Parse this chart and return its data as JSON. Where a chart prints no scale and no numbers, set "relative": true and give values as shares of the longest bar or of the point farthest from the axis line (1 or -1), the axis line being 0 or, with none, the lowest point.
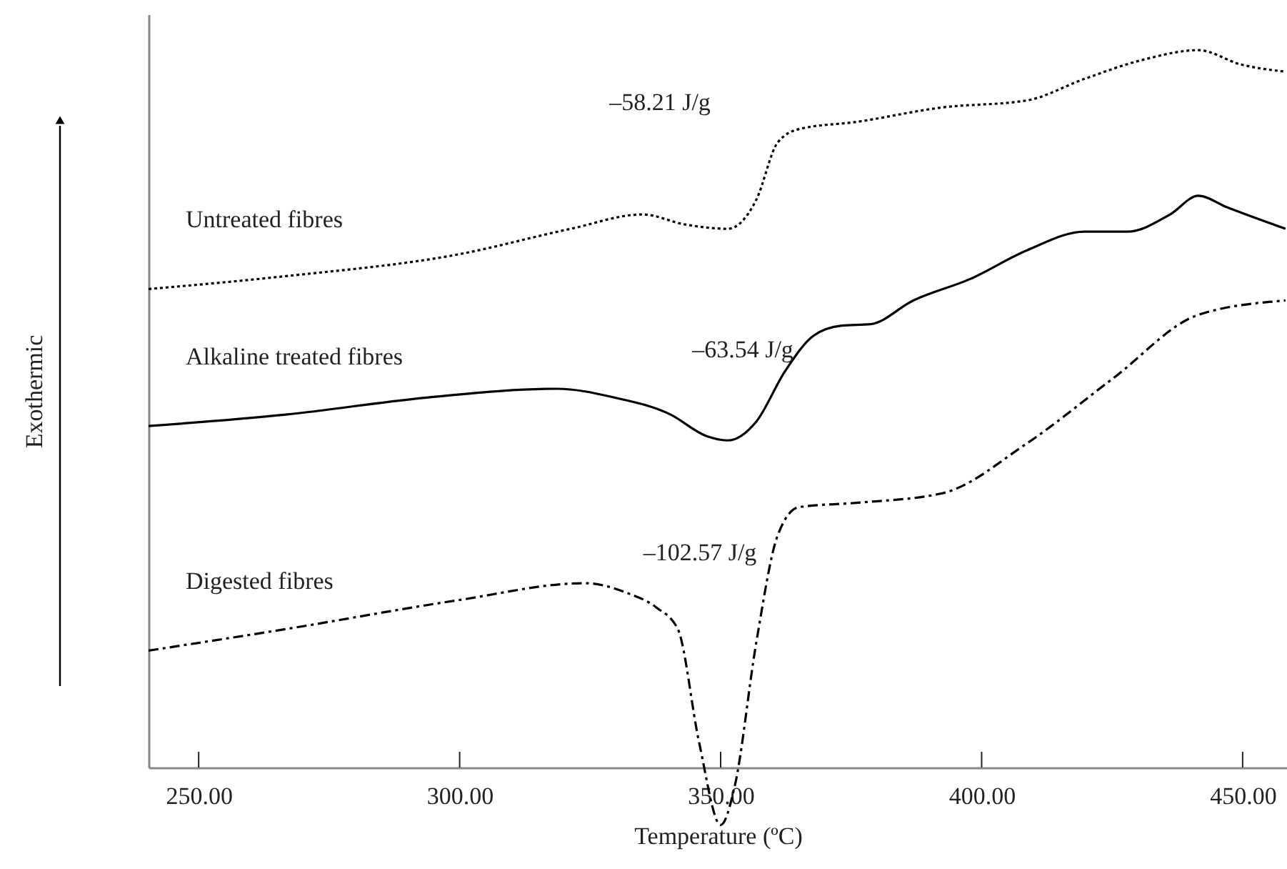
{
  "chart_data": {
    "type": "line",
    "relative": true,
    "xlabel": "Temperature (ºC)",
    "ylabel": "Exothermic",
    "xlim": [
      240.4,
      458.5
    ],
    "xticks": [
      {
        "value": 250,
        "label": "250.00"
      },
      {
        "value": 300,
        "label": "300.00"
      },
      {
        "value": 350,
        "label": "350.00"
      },
      {
        "value": 400,
        "label": "400.00"
      },
      {
        "value": 450,
        "label": "450.00"
      }
    ],
    "grid": false,
    "series": [
      {
        "name": "Untreated fibres",
        "color": "#000000",
        "line_style": "dotted",
        "x": [
          240.4,
          266.7,
          299.5,
          321.3,
          335.0,
          343.2,
          351.4,
          356.8,
          360.9,
          365.0,
          376.0,
          392.3,
          408.7,
          419.7,
          430.6,
          441.5,
          449.7,
          458.2
        ],
        "values": [
          0.667,
          0.685,
          0.715,
          0.751,
          0.771,
          0.757,
          0.751,
          0.791,
          0.871,
          0.89,
          0.9,
          0.92,
          0.93,
          0.96,
          0.986,
          1.0,
          0.98,
          0.97
        ]
      },
      {
        "name": "Alkaline treated fibres",
        "color": "#000000",
        "line_style": "solid",
        "x": [
          240.4,
          266.7,
          294.0,
          318.6,
          329.5,
          340.4,
          347.3,
          351.4,
          356.8,
          362.3,
          367.8,
          373.2,
          378.7,
          386.9,
          397.8,
          408.7,
          419.7,
          427.9,
          436.1,
          441.5,
          447.0,
          458.2
        ],
        "values": [
          0.476,
          0.492,
          0.516,
          0.528,
          0.516,
          0.492,
          0.462,
          0.456,
          0.482,
          0.552,
          0.602,
          0.616,
          0.618,
          0.651,
          0.681,
          0.721,
          0.747,
          0.747,
          0.771,
          0.797,
          0.781,
          0.751
        ]
      },
      {
        "name": "Digested fibres",
        "color": "#000000",
        "line_style": "dashed",
        "x": [
          240.4,
          266.7,
          299.5,
          324.0,
          332.2,
          337.7,
          341.8,
          345.9,
          350.0,
          352.7,
          356.8,
          360.9,
          365.0,
          376.0,
          392.3,
          408.7,
          425.1,
          441.5,
          458.2
        ],
        "values": [
          0.163,
          0.193,
          0.233,
          0.257,
          0.243,
          0.223,
          0.193,
          0.034,
          -0.08,
          -0.026,
          0.173,
          0.323,
          0.363,
          0.369,
          0.382,
          0.452,
          0.542,
          0.631,
          0.651
        ]
      }
    ],
    "annotations": [
      "–58.21 J/g",
      "–63.54 J/g",
      "–102.57 J/g"
    ]
  }
}
